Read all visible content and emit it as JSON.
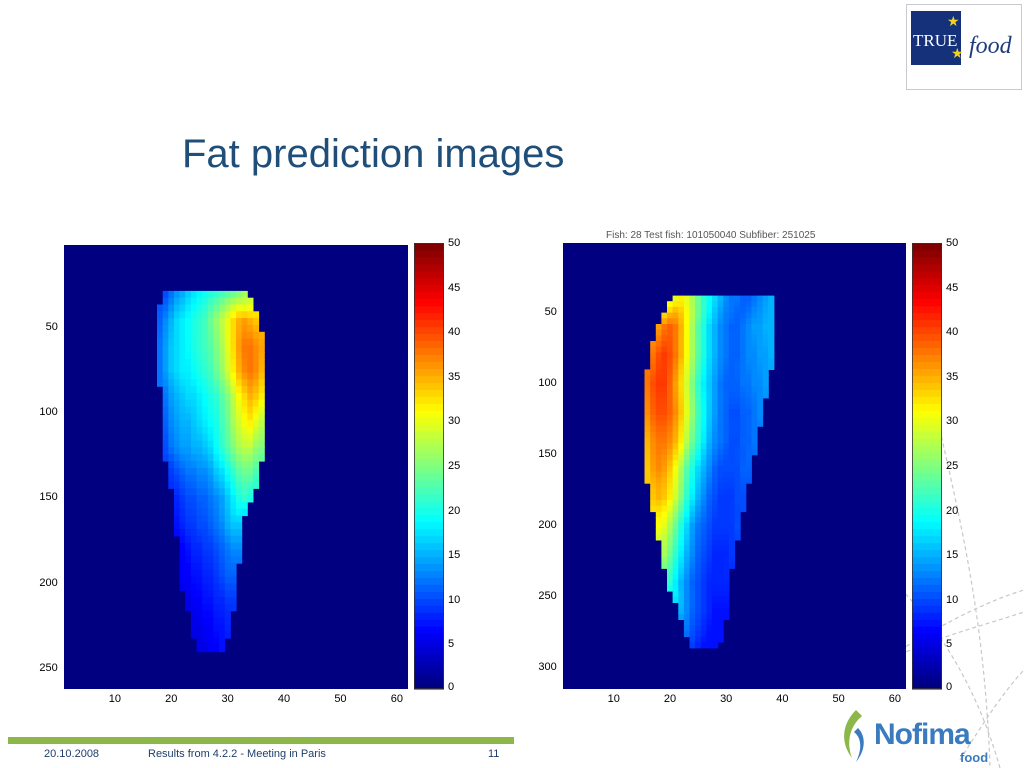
{
  "slide": {
    "title": "Fat prediction images",
    "logo_text": {
      "left": "TRUE",
      "right": "food"
    },
    "footer": {
      "date": "20.10.2008",
      "caption": "Results from 4.2.2 - Meeting in Paris",
      "page": "11"
    },
    "nofima": {
      "word": "Nofima",
      "sub": "food"
    },
    "right_plot_cropped_title": "Fish: 28 Test fish: 101050040 Subfiber: 251025"
  },
  "chart_data": [
    {
      "type": "heatmap",
      "title": "",
      "x_ticks": [
        "10",
        "20",
        "30",
        "40",
        "50",
        "60"
      ],
      "xlim": [
        1,
        62
      ],
      "y_ticks": [
        "50",
        "100",
        "150",
        "200",
        "250"
      ],
      "ylim": [
        1,
        262
      ],
      "colormap": "jet",
      "colorbar_ticks": [
        "0",
        "5",
        "10",
        "15",
        "20",
        "25",
        "30",
        "35",
        "40",
        "45",
        "50"
      ],
      "clim": [
        0,
        50
      ],
      "background_value": 0,
      "region": [
        {
          "y": 30,
          "x0": 19,
          "x1": 33,
          "v": [
            10,
            12,
            14,
            15,
            17,
            18,
            19,
            20,
            21,
            22,
            23,
            24,
            25,
            27
          ]
        },
        {
          "y": 45,
          "x0": 18,
          "x1": 35,
          "v": [
            11,
            13,
            15,
            17,
            18,
            19,
            20,
            21,
            22,
            24,
            26,
            28,
            30,
            33,
            35,
            36,
            35,
            34
          ]
        },
        {
          "y": 60,
          "x0": 18,
          "x1": 36,
          "v": [
            12,
            14,
            16,
            17,
            18,
            19,
            20,
            21,
            22,
            23,
            25,
            27,
            30,
            33,
            36,
            38,
            38,
            37,
            36
          ]
        },
        {
          "y": 75,
          "x0": 18,
          "x1": 36,
          "v": [
            12,
            14,
            16,
            17,
            18,
            18,
            19,
            20,
            21,
            22,
            24,
            26,
            29,
            32,
            35,
            37,
            38,
            37,
            35
          ]
        },
        {
          "y": 90,
          "x0": 19,
          "x1": 36,
          "v": [
            12,
            14,
            15,
            16,
            17,
            17,
            18,
            19,
            20,
            21,
            23,
            25,
            28,
            31,
            33,
            35,
            34,
            32
          ]
        },
        {
          "y": 105,
          "x0": 19,
          "x1": 36,
          "v": [
            11,
            13,
            14,
            15,
            15,
            16,
            17,
            18,
            19,
            20,
            22,
            24,
            27,
            29,
            31,
            32,
            30,
            28
          ]
        },
        {
          "y": 120,
          "x0": 19,
          "x1": 36,
          "v": [
            10,
            12,
            13,
            14,
            14,
            15,
            15,
            16,
            17,
            19,
            21,
            23,
            25,
            27,
            28,
            28,
            26,
            25
          ]
        },
        {
          "y": 135,
          "x0": 20,
          "x1": 35,
          "v": [
            9,
            10,
            11,
            12,
            12,
            13,
            13,
            14,
            16,
            17,
            19,
            21,
            23,
            24,
            24,
            22
          ]
        },
        {
          "y": 150,
          "x0": 21,
          "x1": 34,
          "v": [
            8,
            9,
            10,
            10,
            11,
            11,
            12,
            13,
            14,
            16,
            18,
            20,
            21,
            20
          ]
        },
        {
          "y": 165,
          "x0": 21,
          "x1": 32,
          "v": [
            7,
            8,
            9,
            9,
            10,
            10,
            11,
            12,
            13,
            15,
            16,
            16
          ]
        },
        {
          "y": 180,
          "x0": 22,
          "x1": 32,
          "v": [
            6,
            7,
            8,
            8,
            9,
            9,
            10,
            11,
            12,
            13,
            13
          ]
        },
        {
          "y": 195,
          "x0": 22,
          "x1": 31,
          "v": [
            6,
            6,
            7,
            7,
            8,
            8,
            9,
            10,
            11,
            11
          ]
        },
        {
          "y": 210,
          "x0": 23,
          "x1": 31,
          "v": [
            5,
            6,
            6,
            7,
            7,
            8,
            8,
            9,
            9
          ]
        },
        {
          "y": 225,
          "x0": 24,
          "x1": 30,
          "v": [
            5,
            5,
            6,
            6,
            7,
            7,
            8
          ]
        },
        {
          "y": 238,
          "x0": 25,
          "x1": 29,
          "v": [
            5,
            5,
            6,
            6,
            7
          ]
        }
      ]
    },
    {
      "type": "heatmap",
      "title": "",
      "x_ticks": [
        "10",
        "20",
        "30",
        "40",
        "50",
        "60"
      ],
      "xlim": [
        1,
        62
      ],
      "y_ticks": [
        "50",
        "100",
        "150",
        "200",
        "250",
        "300"
      ],
      "ylim": [
        1,
        315
      ],
      "colormap": "jet",
      "colorbar_ticks": [
        "0",
        "5",
        "10",
        "15",
        "20",
        "25",
        "30",
        "35",
        "40",
        "45",
        "50"
      ],
      "clim": [
        0,
        50
      ],
      "background_value": 0,
      "region": [
        {
          "y": 40,
          "x0": 21,
          "x1": 38,
          "v": [
            30,
            32,
            30,
            27,
            24,
            21,
            19,
            17,
            15,
            13,
            12,
            12,
            11,
            11,
            12,
            13,
            14,
            15
          ]
        },
        {
          "y": 60,
          "x0": 18,
          "x1": 38,
          "v": [
            36,
            38,
            39,
            38,
            35,
            31,
            27,
            23,
            20,
            17,
            15,
            13,
            12,
            11,
            11,
            12,
            13,
            14,
            14,
            15,
            15
          ]
        },
        {
          "y": 80,
          "x0": 17,
          "x1": 38,
          "v": [
            38,
            40,
            41,
            40,
            38,
            35,
            31,
            27,
            23,
            20,
            17,
            15,
            13,
            12,
            11,
            11,
            12,
            13,
            13,
            14,
            14,
            15
          ]
        },
        {
          "y": 100,
          "x0": 16,
          "x1": 37,
          "v": [
            38,
            40,
            41,
            41,
            39,
            36,
            33,
            29,
            25,
            21,
            18,
            16,
            14,
            12,
            11,
            11,
            11,
            12,
            12,
            13,
            13,
            14
          ]
        },
        {
          "y": 120,
          "x0": 16,
          "x1": 36,
          "v": [
            37,
            39,
            40,
            40,
            39,
            37,
            34,
            30,
            26,
            22,
            19,
            16,
            14,
            12,
            11,
            10,
            10,
            11,
            11,
            12,
            13
          ]
        },
        {
          "y": 140,
          "x0": 16,
          "x1": 35,
          "v": [
            35,
            37,
            38,
            38,
            37,
            35,
            32,
            28,
            24,
            21,
            18,
            15,
            13,
            12,
            11,
            10,
            10,
            11,
            11,
            12
          ]
        },
        {
          "y": 160,
          "x0": 16,
          "x1": 34,
          "v": [
            34,
            36,
            37,
            36,
            34,
            31,
            27,
            23,
            20,
            17,
            15,
            13,
            11,
            10,
            10,
            10,
            10,
            11,
            11
          ]
        },
        {
          "y": 180,
          "x0": 17,
          "x1": 33,
          "v": [
            34,
            35,
            34,
            32,
            29,
            25,
            21,
            18,
            15,
            13,
            11,
            10,
            9,
            9,
            9,
            10,
            10
          ]
        },
        {
          "y": 200,
          "x0": 18,
          "x1": 32,
          "v": [
            31,
            30,
            27,
            24,
            20,
            17,
            14,
            12,
            11,
            10,
            9,
            9,
            9,
            9,
            10
          ]
        },
        {
          "y": 220,
          "x0": 19,
          "x1": 31,
          "v": [
            27,
            24,
            21,
            18,
            15,
            13,
            11,
            10,
            9,
            8,
            8,
            8,
            9
          ]
        },
        {
          "y": 240,
          "x0": 20,
          "x1": 30,
          "v": [
            21,
            18,
            15,
            13,
            11,
            10,
            9,
            8,
            8,
            8,
            8
          ]
        },
        {
          "y": 260,
          "x0": 22,
          "x1": 30,
          "v": [
            15,
            13,
            11,
            10,
            9,
            8,
            7,
            7,
            7
          ]
        },
        {
          "y": 275,
          "x0": 23,
          "x1": 29,
          "v": [
            12,
            10,
            9,
            8,
            7,
            7,
            7
          ]
        },
        {
          "y": 285,
          "x0": 24,
          "x1": 28,
          "v": [
            9,
            8,
            7,
            7,
            7
          ]
        }
      ]
    }
  ]
}
